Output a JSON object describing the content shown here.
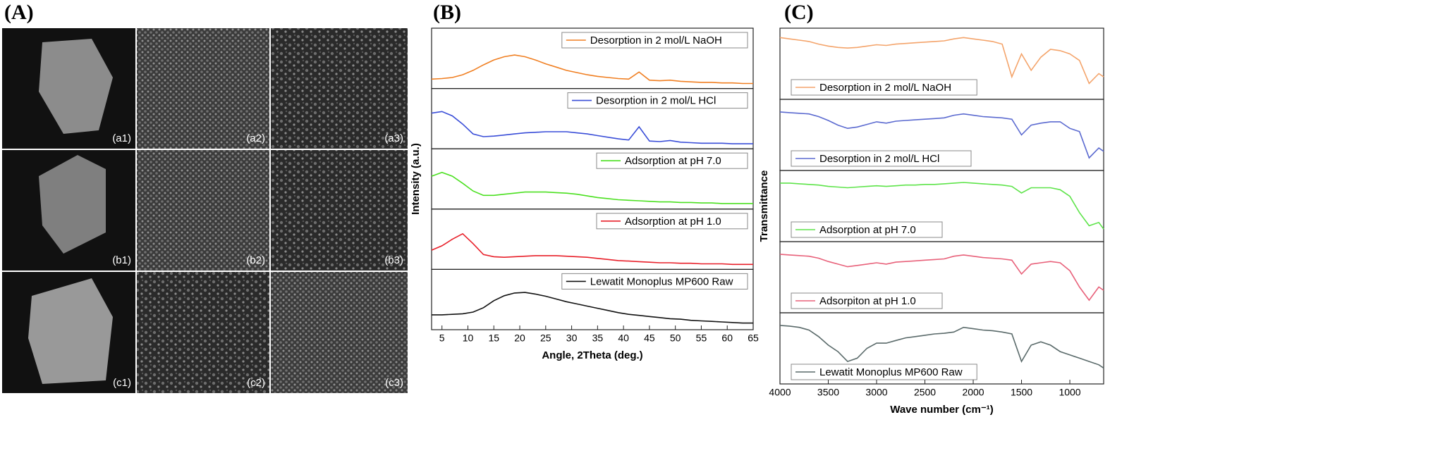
{
  "panel_labels": [
    "(A)",
    "(B)",
    "(C)"
  ],
  "sem": {
    "labels": [
      "(a1)",
      "(a2)",
      "(a3)",
      "(b1)",
      "(b2)",
      "(b3)",
      "(c1)",
      "(c2)",
      "(c3)"
    ]
  },
  "chart_data": [
    {
      "type": "line",
      "xlabel": "Angle, 2Theta (deg.)",
      "ylabel": "Intensity (a.u.)",
      "xlim": [
        3,
        65
      ],
      "xticks": [
        5,
        10,
        15,
        20,
        25,
        30,
        35,
        40,
        45,
        50,
        55,
        60,
        65
      ],
      "ylim": [
        0,
        1
      ],
      "legend": "upper right",
      "x": [
        3,
        5,
        7,
        9,
        11,
        13,
        15,
        17,
        19,
        21,
        23,
        25,
        27,
        29,
        31,
        33,
        35,
        37,
        39,
        41,
        43,
        45,
        47,
        49,
        51,
        53,
        55,
        57,
        59,
        61,
        63,
        65
      ],
      "series": [
        {
          "name": "Desorption in 2 mol/L NaOH",
          "color": "#f07f22",
          "values": [
            0.12,
            0.13,
            0.15,
            0.2,
            0.28,
            0.38,
            0.47,
            0.53,
            0.56,
            0.53,
            0.47,
            0.4,
            0.34,
            0.28,
            0.24,
            0.2,
            0.17,
            0.15,
            0.13,
            0.12,
            0.25,
            0.1,
            0.09,
            0.1,
            0.08,
            0.07,
            0.06,
            0.06,
            0.05,
            0.05,
            0.04,
            0.04
          ]
        },
        {
          "name": "Desorption in 2 mol/L HCl",
          "color": "#3a4ed8",
          "values": [
            0.6,
            0.63,
            0.55,
            0.4,
            0.22,
            0.17,
            0.18,
            0.2,
            0.22,
            0.24,
            0.25,
            0.26,
            0.26,
            0.26,
            0.24,
            0.22,
            0.19,
            0.16,
            0.13,
            0.11,
            0.35,
            0.09,
            0.08,
            0.1,
            0.07,
            0.06,
            0.05,
            0.05,
            0.05,
            0.04,
            0.04,
            0.04
          ]
        },
        {
          "name": "Adsorption at pH 7.0",
          "color": "#4be020",
          "values": [
            0.55,
            0.62,
            0.55,
            0.42,
            0.28,
            0.2,
            0.2,
            0.22,
            0.24,
            0.26,
            0.26,
            0.26,
            0.25,
            0.24,
            0.22,
            0.19,
            0.16,
            0.14,
            0.12,
            0.11,
            0.1,
            0.09,
            0.08,
            0.08,
            0.07,
            0.07,
            0.06,
            0.06,
            0.05,
            0.05,
            0.05,
            0.05
          ]
        },
        {
          "name": "Adsorption at pH 1.0",
          "color": "#e8202a",
          "values": [
            0.3,
            0.38,
            0.5,
            0.6,
            0.42,
            0.22,
            0.18,
            0.17,
            0.18,
            0.19,
            0.2,
            0.2,
            0.2,
            0.19,
            0.18,
            0.17,
            0.15,
            0.13,
            0.11,
            0.1,
            0.09,
            0.08,
            0.07,
            0.07,
            0.06,
            0.06,
            0.05,
            0.05,
            0.05,
            0.04,
            0.04,
            0.04
          ]
        },
        {
          "name": "Lewatit Monoplus MP600 Raw",
          "color": "#111111",
          "values": [
            0.22,
            0.22,
            0.23,
            0.24,
            0.27,
            0.35,
            0.48,
            0.57,
            0.62,
            0.63,
            0.6,
            0.56,
            0.51,
            0.46,
            0.42,
            0.38,
            0.34,
            0.3,
            0.26,
            0.23,
            0.21,
            0.19,
            0.17,
            0.15,
            0.14,
            0.12,
            0.11,
            0.1,
            0.09,
            0.08,
            0.07,
            0.07
          ]
        }
      ]
    },
    {
      "type": "line",
      "xlabel": "Wave number (cm⁻¹)",
      "ylabel": "Transmittance",
      "xlim": [
        4000,
        650
      ],
      "xticks": [
        4000,
        3500,
        3000,
        2500,
        2000,
        1500,
        1000
      ],
      "ylim": [
        0,
        1
      ],
      "legend": "lower left",
      "x": [
        4000,
        3900,
        3800,
        3700,
        3600,
        3500,
        3400,
        3300,
        3200,
        3100,
        3000,
        2900,
        2800,
        2700,
        2600,
        2500,
        2400,
        2300,
        2200,
        2100,
        2000,
        1900,
        1800,
        1700,
        1600,
        1500,
        1400,
        1300,
        1200,
        1100,
        1000,
        900,
        800,
        700,
        650
      ],
      "series": [
        {
          "name": "Desorption in 2 mol/L NaOH",
          "color": "#f4a46b",
          "values": [
            0.9,
            0.88,
            0.86,
            0.84,
            0.8,
            0.77,
            0.75,
            0.74,
            0.75,
            0.77,
            0.79,
            0.78,
            0.8,
            0.81,
            0.82,
            0.83,
            0.84,
            0.85,
            0.88,
            0.9,
            0.88,
            0.86,
            0.84,
            0.8,
            0.3,
            0.65,
            0.4,
            0.6,
            0.72,
            0.7,
            0.65,
            0.55,
            0.2,
            0.35,
            0.3
          ]
        },
        {
          "name": "Desorption in 2 mol/L HCl",
          "color": "#5b6ad0",
          "values": [
            0.85,
            0.84,
            0.83,
            0.82,
            0.78,
            0.72,
            0.65,
            0.6,
            0.62,
            0.66,
            0.7,
            0.68,
            0.71,
            0.72,
            0.73,
            0.74,
            0.75,
            0.76,
            0.8,
            0.82,
            0.8,
            0.78,
            0.77,
            0.76,
            0.74,
            0.5,
            0.65,
            0.68,
            0.7,
            0.7,
            0.6,
            0.55,
            0.15,
            0.3,
            0.25
          ]
        },
        {
          "name": "Adsorption at pH 7.0",
          "color": "#5ee44a",
          "values": [
            0.85,
            0.85,
            0.84,
            0.83,
            0.82,
            0.8,
            0.79,
            0.78,
            0.79,
            0.8,
            0.81,
            0.8,
            0.81,
            0.82,
            0.82,
            0.83,
            0.83,
            0.84,
            0.85,
            0.86,
            0.85,
            0.84,
            0.83,
            0.82,
            0.8,
            0.7,
            0.78,
            0.78,
            0.78,
            0.75,
            0.65,
            0.4,
            0.2,
            0.25,
            0.15
          ]
        },
        {
          "name": "Adsorpiton at pH 1.0",
          "color": "#e8617a",
          "values": [
            0.85,
            0.84,
            0.83,
            0.82,
            0.79,
            0.74,
            0.7,
            0.66,
            0.68,
            0.7,
            0.72,
            0.7,
            0.73,
            0.74,
            0.75,
            0.76,
            0.77,
            0.78,
            0.82,
            0.84,
            0.82,
            0.8,
            0.79,
            0.78,
            0.76,
            0.55,
            0.7,
            0.72,
            0.74,
            0.72,
            0.6,
            0.35,
            0.15,
            0.35,
            0.3
          ]
        },
        {
          "name": "Lewatit Monoplus MP600 Raw",
          "color": "#5a6a6a",
          "values": [
            0.85,
            0.84,
            0.82,
            0.78,
            0.68,
            0.55,
            0.45,
            0.3,
            0.35,
            0.5,
            0.58,
            0.58,
            0.62,
            0.66,
            0.68,
            0.7,
            0.72,
            0.73,
            0.75,
            0.82,
            0.8,
            0.78,
            0.77,
            0.75,
            0.72,
            0.3,
            0.55,
            0.6,
            0.55,
            0.45,
            0.4,
            0.35,
            0.3,
            0.25,
            0.2
          ]
        }
      ]
    }
  ]
}
